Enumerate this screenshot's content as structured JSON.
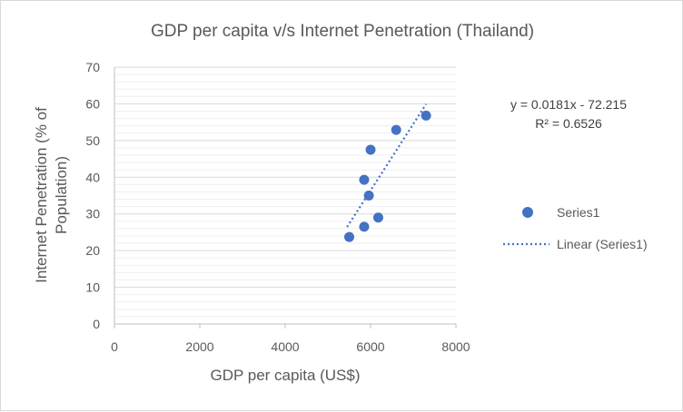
{
  "chart_data": {
    "type": "scatter",
    "title": "GDP per capita v/s Internet Penetration (Thailand)",
    "xlabel": "GDP per capita (US$)",
    "ylabel_lines": [
      "Internet Penetration (% of",
      "Population)"
    ],
    "xlim": [
      0,
      8000
    ],
    "ylim": [
      0,
      70
    ],
    "x_ticks": [
      0,
      2000,
      4000,
      6000,
      8000
    ],
    "y_ticks": [
      0,
      10,
      20,
      30,
      40,
      50,
      60,
      70
    ],
    "major_grid": true,
    "minor_grid_step": 2,
    "legend_position": "right",
    "series": [
      {
        "name": "Series1",
        "color": "#4472c4",
        "points": [
          {
            "x": 5500,
            "y": 23.7
          },
          {
            "x": 5850,
            "y": 26.5
          },
          {
            "x": 6180,
            "y": 29
          },
          {
            "x": 5960,
            "y": 35
          },
          {
            "x": 5850,
            "y": 39.3
          },
          {
            "x": 6000,
            "y": 47.5
          },
          {
            "x": 6600,
            "y": 52.9
          },
          {
            "x": 7300,
            "y": 56.8
          }
        ]
      }
    ],
    "trendline": {
      "name": "Linear (Series1)",
      "color": "#4472c4",
      "slope": 0.0181,
      "intercept": -72.215,
      "x_range": [
        5450,
        7300
      ],
      "equation": "y = 0.0181x - 72.215",
      "r_squared": "R² = 0.6526"
    }
  }
}
